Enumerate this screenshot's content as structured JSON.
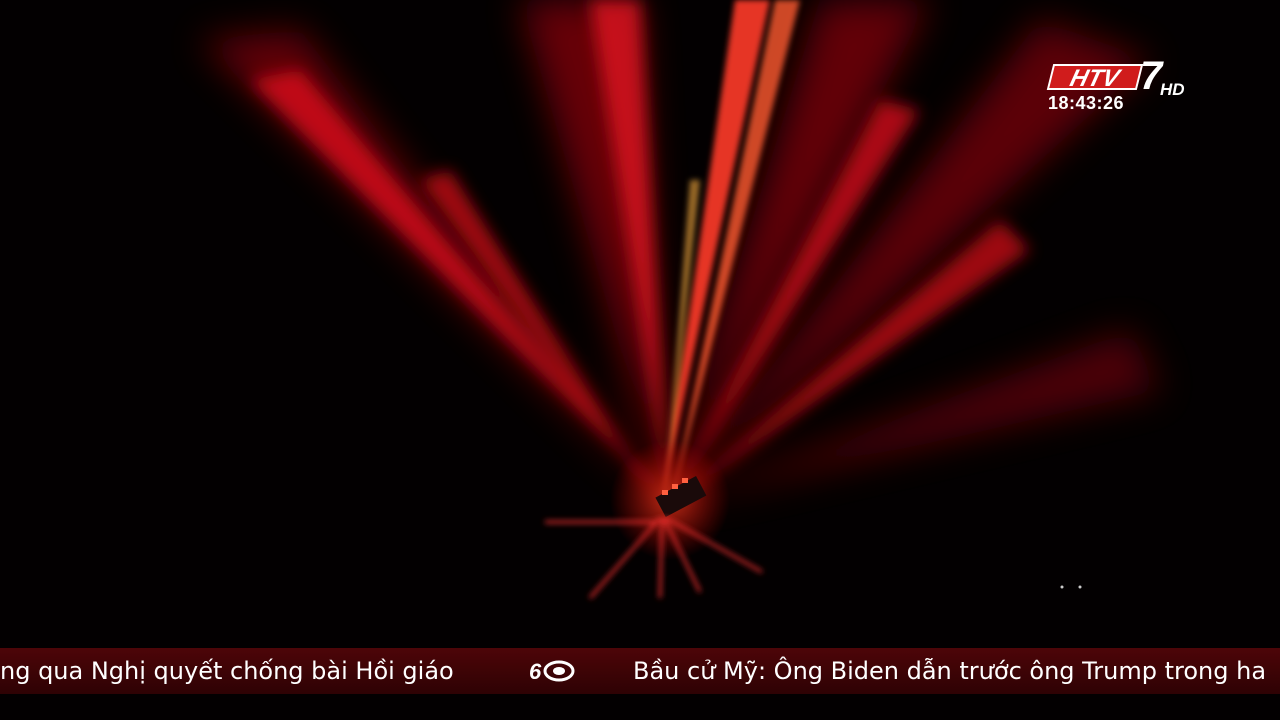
{
  "channel": {
    "logo_text": "HTV",
    "logo_number": "7",
    "logo_suffix": "HD",
    "clock": "18:43:26"
  },
  "ticker": {
    "items": [
      "ng qua Nghị quyết chống bài Hồi giáo",
      "Bầu cử Mỹ: Ông Biden dẫn trước ông Trump trong ha"
    ],
    "separator_icon": "htv-60-icon"
  },
  "colors": {
    "laser": "#ff1e1e",
    "ticker_bg": "#3a0306",
    "logo_red": "#d01c1c"
  }
}
